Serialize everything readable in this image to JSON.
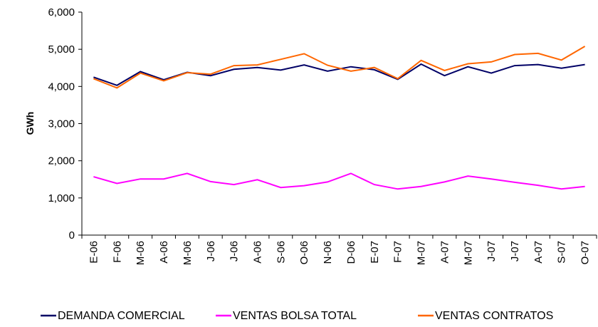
{
  "chart_data": {
    "type": "line",
    "y_label": "GWh",
    "categories": [
      "E-06",
      "F-06",
      "M-06",
      "A-06",
      "M-06",
      "J-06",
      "J-06",
      "A-06",
      "S-06",
      "O-06",
      "N-06",
      "D-06",
      "E-07",
      "F-07",
      "M-07",
      "A-07",
      "M-07",
      "J-07",
      "J-07",
      "A-07",
      "S-07",
      "O-07"
    ],
    "series": [
      {
        "name": "DEMANDA COMERCIAL",
        "color": "#000066",
        "values": [
          4250,
          4030,
          4400,
          4180,
          4380,
          4290,
          4460,
          4510,
          4440,
          4580,
          4410,
          4530,
          4450,
          4190,
          4600,
          4290,
          4530,
          4360,
          4560,
          4590,
          4490,
          4590
        ]
      },
      {
        "name": "VENTAS BOLSA TOTAL",
        "color": "#ff00ff",
        "values": [
          1570,
          1390,
          1510,
          1510,
          1660,
          1440,
          1360,
          1490,
          1280,
          1330,
          1430,
          1660,
          1360,
          1240,
          1310,
          1430,
          1590,
          1510,
          1420,
          1340,
          1240,
          1310
        ]
      },
      {
        "name": "VENTAS CONTRATOS",
        "color": "#ff6600",
        "values": [
          4210,
          3960,
          4360,
          4150,
          4370,
          4330,
          4560,
          4580,
          4730,
          4880,
          4570,
          4410,
          4510,
          4210,
          4700,
          4430,
          4610,
          4660,
          4860,
          4890,
          4710,
          5080
        ]
      }
    ],
    "ylim": [
      0,
      6000
    ],
    "yticks": [
      0,
      {
        "value": 1000,
        "label": "1,000"
      },
      {
        "value": 2000,
        "label": "2,000"
      },
      {
        "value": 3000,
        "label": "3,000"
      },
      {
        "value": 4000,
        "label": "4,000"
      },
      {
        "value": 5000,
        "label": "5,000"
      },
      {
        "value": 6000,
        "label": "6,000"
      }
    ],
    "legend": "bottom"
  }
}
